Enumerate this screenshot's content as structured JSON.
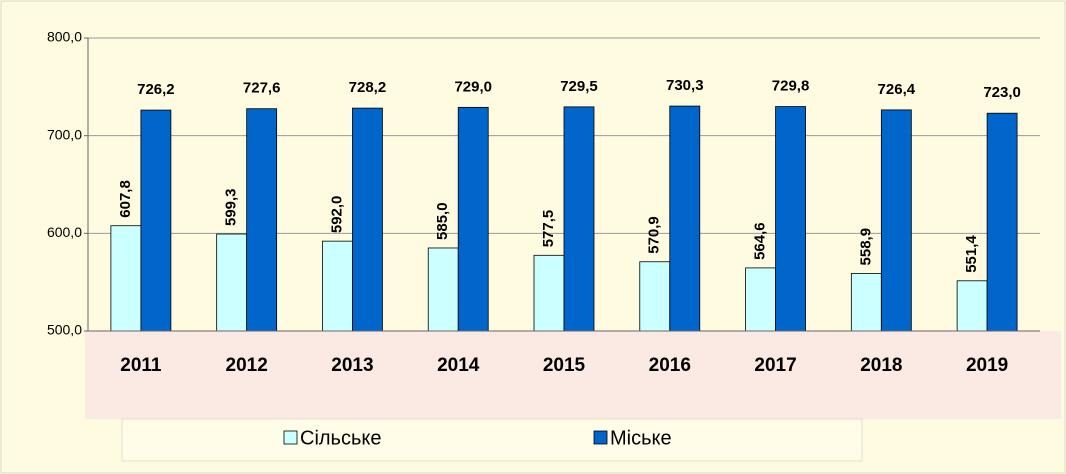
{
  "chart_data": {
    "type": "bar",
    "categories": [
      "2011",
      "2012",
      "2013",
      "2014",
      "2015",
      "2016",
      "2017",
      "2018",
      "2019"
    ],
    "series": [
      {
        "name": "Сільське",
        "color": "#ccffff",
        "values": [
          607.8,
          599.3,
          592.0,
          585.0,
          577.5,
          570.9,
          564.6,
          558.9,
          551.4
        ],
        "value_labels": [
          "607,8",
          "599,3",
          "592,0",
          "585,0",
          "577,5",
          "570,9",
          "564,6",
          "558,9",
          "551,4"
        ]
      },
      {
        "name": "Міське",
        "color": "#0066cc",
        "values": [
          726.2,
          727.6,
          728.2,
          729.0,
          729.5,
          730.3,
          729.8,
          726.4,
          723.0
        ],
        "value_labels": [
          "726,2",
          "727,6",
          "728,2",
          "729,0",
          "729,5",
          "730,3",
          "729,8",
          "726,4",
          "723,0"
        ]
      }
    ],
    "ylim": [
      500,
      800
    ],
    "yticks": [
      {
        "value": 500,
        "label": "500,0"
      },
      {
        "value": 600,
        "label": "600,0"
      },
      {
        "value": 700,
        "label": "700,0"
      },
      {
        "value": 800,
        "label": "800,0"
      }
    ],
    "grid": true,
    "legend": "bottom"
  }
}
